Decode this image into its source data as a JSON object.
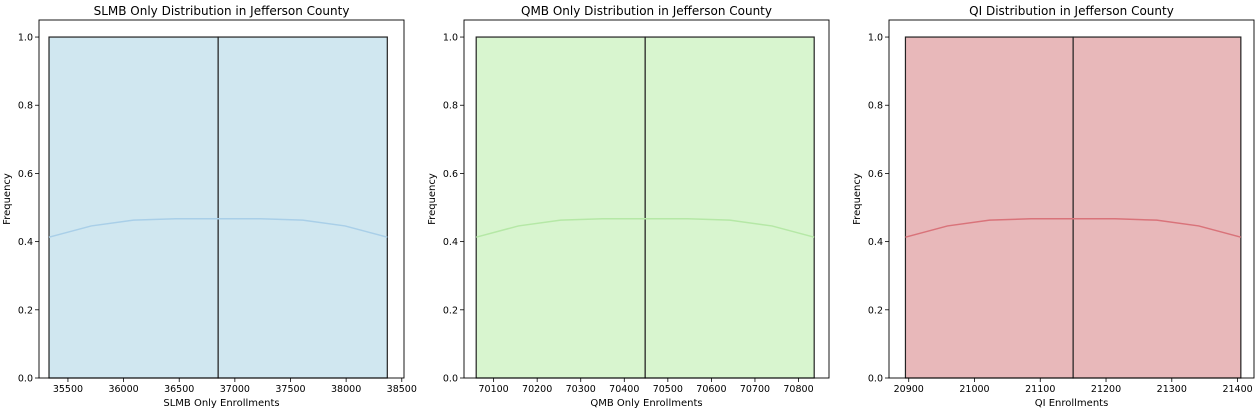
{
  "chart_data": [
    {
      "type": "histogram",
      "title": "SLMB Only Distribution in Jefferson County",
      "xlabel": "SLMB Only Enrollments",
      "ylabel": "Frequency",
      "xlim": [
        35240,
        38520
      ],
      "ylim": [
        0,
        1.05
      ],
      "xticks": [
        35500,
        36000,
        36500,
        37000,
        37500,
        38000,
        38500
      ],
      "yticks": [
        0.0,
        0.2,
        0.4,
        0.6,
        0.8,
        1.0
      ],
      "bins": [
        {
          "x0": 35330,
          "x1": 36850,
          "count": 1
        },
        {
          "x0": 36850,
          "x1": 38370,
          "count": 1
        }
      ],
      "kde": [
        [
          35330,
          0.413
        ],
        [
          35710,
          0.446
        ],
        [
          36090,
          0.463
        ],
        [
          36470,
          0.467
        ],
        [
          36850,
          0.467
        ],
        [
          37230,
          0.467
        ],
        [
          37610,
          0.463
        ],
        [
          37990,
          0.446
        ],
        [
          38370,
          0.413
        ]
      ],
      "colors": {
        "fill": "#d0e7f0",
        "edge": "#222222",
        "kde": "#a9cfe8"
      }
    },
    {
      "type": "histogram",
      "title": "QMB Only Distribution in Jefferson County",
      "xlabel": "QMB Only Enrollments",
      "ylabel": "Frequency",
      "xlim": [
        70032,
        70870
      ],
      "ylim": [
        0,
        1.05
      ],
      "xticks": [
        70100,
        70200,
        70300,
        70400,
        70500,
        70600,
        70700,
        70800
      ],
      "yticks": [
        0.0,
        0.2,
        0.4,
        0.6,
        0.8,
        1.0
      ],
      "bins": [
        {
          "x0": 70060,
          "x1": 70448,
          "count": 1
        },
        {
          "x0": 70448,
          "x1": 70836,
          "count": 1
        }
      ],
      "kde": [
        [
          70060,
          0.413
        ],
        [
          70157,
          0.446
        ],
        [
          70254,
          0.463
        ],
        [
          70351,
          0.467
        ],
        [
          70448,
          0.467
        ],
        [
          70545,
          0.467
        ],
        [
          70642,
          0.463
        ],
        [
          70739,
          0.446
        ],
        [
          70836,
          0.413
        ]
      ],
      "colors": {
        "fill": "#d8f5cf",
        "edge": "#222222",
        "kde": "#b5e8a6"
      }
    },
    {
      "type": "histogram",
      "title": "QI Distribution in Jefferson County",
      "xlabel": "QI Enrollments",
      "ylabel": "Frequency",
      "xlim": [
        20870,
        21425
      ],
      "ylim": [
        0,
        1.05
      ],
      "xticks": [
        20900,
        21000,
        21100,
        21200,
        21300,
        21400
      ],
      "yticks": [
        0.0,
        0.2,
        0.4,
        0.6,
        0.8,
        1.0
      ],
      "bins": [
        {
          "x0": 20895,
          "x1": 21150,
          "count": 1
        },
        {
          "x0": 21150,
          "x1": 21405,
          "count": 1
        }
      ],
      "kde": [
        [
          20895,
          0.413
        ],
        [
          20959,
          0.446
        ],
        [
          21023,
          0.463
        ],
        [
          21086,
          0.467
        ],
        [
          21150,
          0.467
        ],
        [
          21214,
          0.467
        ],
        [
          21277,
          0.463
        ],
        [
          21341,
          0.446
        ],
        [
          21405,
          0.413
        ]
      ],
      "colors": {
        "fill": "#e8b8ba",
        "edge": "#222222",
        "kde": "#d9737a"
      }
    }
  ]
}
